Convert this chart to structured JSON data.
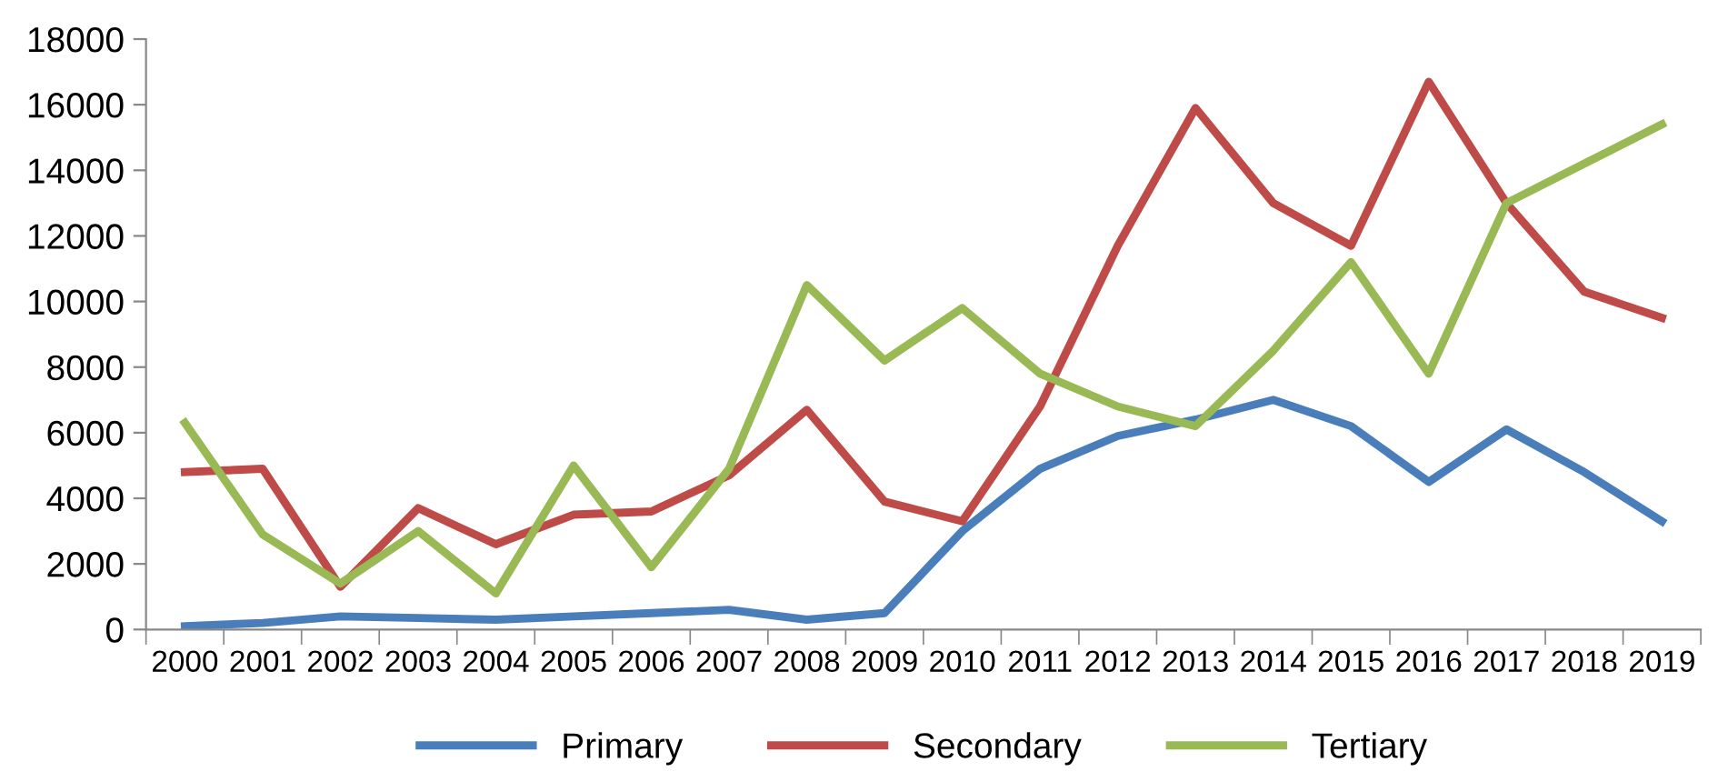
{
  "chart_data": {
    "type": "line",
    "categories": [
      "2000",
      "2001",
      "2002",
      "2003",
      "2004",
      "2005",
      "2006",
      "2007",
      "2008",
      "2009",
      "2010",
      "2011",
      "2012",
      "2013",
      "2014",
      "2015",
      "2016",
      "2017",
      "2018",
      "2019"
    ],
    "series": [
      {
        "name": "Primary",
        "color": "#4a7ebb",
        "values": [
          100,
          200,
          400,
          350,
          300,
          400,
          500,
          600,
          300,
          500,
          3000,
          4900,
          5900,
          6400,
          7000,
          6200,
          4500,
          6100,
          4800,
          3300
        ]
      },
      {
        "name": "Secondary",
        "color": "#be4b48",
        "values": [
          4800,
          4900,
          1300,
          3700,
          2600,
          3500,
          3600,
          4700,
          6700,
          3900,
          3300,
          6800,
          11700,
          15900,
          13000,
          11700,
          16700,
          13000,
          10300,
          9500
        ]
      },
      {
        "name": "Tertiary",
        "color": "#98b954",
        "values": [
          6300,
          2900,
          1400,
          3000,
          1100,
          5000,
          1900,
          4900,
          10500,
          8200,
          9800,
          7800,
          6800,
          6200,
          8500,
          11200,
          7800,
          13000,
          14200,
          15400
        ]
      }
    ],
    "ylim": [
      0,
      18000
    ],
    "yticks": [
      0,
      2000,
      4000,
      6000,
      8000,
      10000,
      12000,
      14000,
      16000,
      18000
    ],
    "grid": false,
    "legend": "bottom",
    "marker": "none",
    "line_style": "solid"
  }
}
